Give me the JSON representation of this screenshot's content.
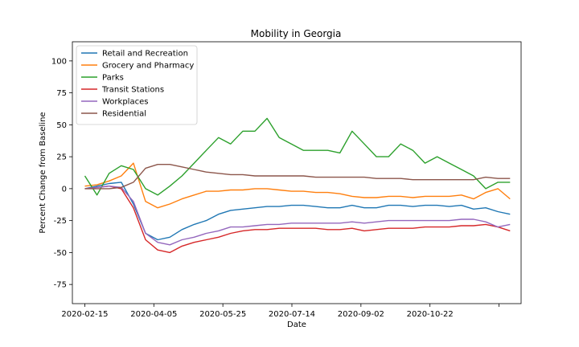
{
  "chart_data": {
    "type": "line",
    "title": "Mobility in Georgia",
    "xlabel": "Date",
    "ylabel": "Percent Change from Baseline",
    "x_start": "2020-02-15",
    "x_end": "2020-12-19",
    "x_ticks": [
      "2020-02-15",
      "2020-04-05",
      "2020-05-25",
      "2020-07-14",
      "2020-09-02",
      "2020-10-22",
      ""
    ],
    "xlim": [
      "2020-02-06",
      "2020-12-27"
    ],
    "ylim": [
      -90,
      115
    ],
    "y_ticks": [
      -75,
      -50,
      -25,
      0,
      25,
      50,
      75,
      100
    ],
    "legend_position": "upper-left",
    "grid": false,
    "series": [
      {
        "name": "Retail and Recreation",
        "color": "#1f77b4",
        "sampling": "weekly mean (approx.)",
        "values": [
          0,
          2,
          4,
          5,
          -12,
          -35,
          -40,
          -38,
          -32,
          -28,
          -25,
          -20,
          -17,
          -16,
          -15,
          -14,
          -14,
          -13,
          -13,
          -14,
          -15,
          -15,
          -13,
          -15,
          -15,
          -13,
          -13,
          -14,
          -13,
          -13,
          -14,
          -13,
          -16,
          -15,
          -18,
          -20
        ]
      },
      {
        "name": "Grocery and Pharmacy",
        "color": "#ff7f0e",
        "sampling": "weekly mean (approx.)",
        "values": [
          2,
          3,
          6,
          10,
          20,
          -10,
          -15,
          -12,
          -8,
          -5,
          -2,
          -2,
          -1,
          -1,
          0,
          0,
          -1,
          -2,
          -2,
          -3,
          -3,
          -4,
          -6,
          -7,
          -7,
          -6,
          -6,
          -7,
          -6,
          -6,
          -6,
          -5,
          -8,
          -3,
          0,
          -8
        ]
      },
      {
        "name": "Parks",
        "color": "#2ca02c",
        "sampling": "weekly mean (approx.)",
        "values": [
          10,
          -5,
          12,
          18,
          15,
          0,
          -5,
          2,
          10,
          20,
          30,
          40,
          35,
          45,
          45,
          55,
          40,
          35,
          30,
          30,
          30,
          28,
          45,
          35,
          25,
          25,
          35,
          30,
          20,
          25,
          20,
          15,
          10,
          0,
          5,
          5
        ]
      },
      {
        "name": "Transit Stations",
        "color": "#d62728",
        "sampling": "weekly mean (approx.)",
        "values": [
          0,
          1,
          2,
          0,
          -15,
          -40,
          -48,
          -50,
          -45,
          -42,
          -40,
          -38,
          -35,
          -33,
          -32,
          -32,
          -31,
          -31,
          -31,
          -31,
          -32,
          -32,
          -31,
          -33,
          -32,
          -31,
          -31,
          -31,
          -30,
          -30,
          -30,
          -29,
          -29,
          -28,
          -30,
          -33
        ]
      },
      {
        "name": "Workplaces",
        "color": "#9467bd",
        "sampling": "weekly mean (approx.)",
        "values": [
          0,
          1,
          2,
          1,
          -10,
          -35,
          -42,
          -44,
          -40,
          -38,
          -35,
          -33,
          -30,
          -30,
          -29,
          -28,
          -28,
          -27,
          -27,
          -27,
          -27,
          -27,
          -26,
          -27,
          -26,
          -25,
          -25,
          -25,
          -25,
          -25,
          -25,
          -24,
          -24,
          -26,
          -30,
          -28
        ]
      },
      {
        "name": "Residential",
        "color": "#8c564b",
        "sampling": "weekly mean (approx.)",
        "values": [
          0,
          0,
          0,
          1,
          5,
          16,
          19,
          19,
          17,
          15,
          13,
          12,
          11,
          11,
          10,
          10,
          10,
          10,
          10,
          9,
          9,
          9,
          9,
          9,
          8,
          8,
          8,
          7,
          7,
          7,
          7,
          7,
          7,
          9,
          8,
          8
        ]
      }
    ]
  }
}
